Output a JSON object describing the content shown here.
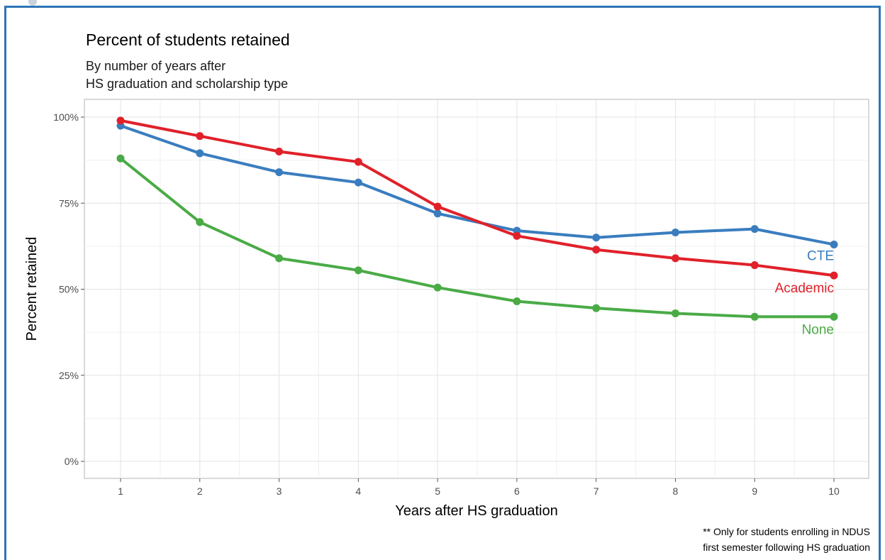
{
  "chart_data": {
    "type": "line",
    "title": "Percent of students retained",
    "subtitle_lines": [
      "By number of years after",
      "HS graduation and scholarship type"
    ],
    "xlabel": "Years after HS graduation",
    "ylabel": "Percent retained",
    "x": [
      1,
      2,
      3,
      4,
      5,
      6,
      7,
      8,
      9,
      10
    ],
    "x_tick_labels": [
      "1",
      "2",
      "3",
      "4",
      "5",
      "6",
      "7",
      "8",
      "9",
      "10"
    ],
    "ylim": [
      0,
      100
    ],
    "y_ticks": [
      0,
      25,
      50,
      75,
      100
    ],
    "y_tick_labels": [
      "0%",
      "25%",
      "50%",
      "75%",
      "100%"
    ],
    "grid": true,
    "series": [
      {
        "name": "CTE",
        "color": "#3a7dbf",
        "values": [
          97.5,
          89.5,
          84.0,
          81.0,
          72.0,
          67.0,
          65.0,
          66.5,
          67.5,
          63.0
        ]
      },
      {
        "name": "Academic",
        "color": "#e0212a",
        "values": [
          99.0,
          94.5,
          90.0,
          87.0,
          74.0,
          65.5,
          61.5,
          59.0,
          57.0,
          54.0
        ]
      },
      {
        "name": "None",
        "color": "#4aab46",
        "values": [
          88.0,
          69.5,
          59.0,
          55.5,
          50.5,
          46.5,
          44.5,
          43.0,
          42.0,
          42.0
        ]
      }
    ],
    "footnote_lines": [
      "** Only for students enrolling in NDUS",
      "first semester following HS graduation"
    ]
  }
}
